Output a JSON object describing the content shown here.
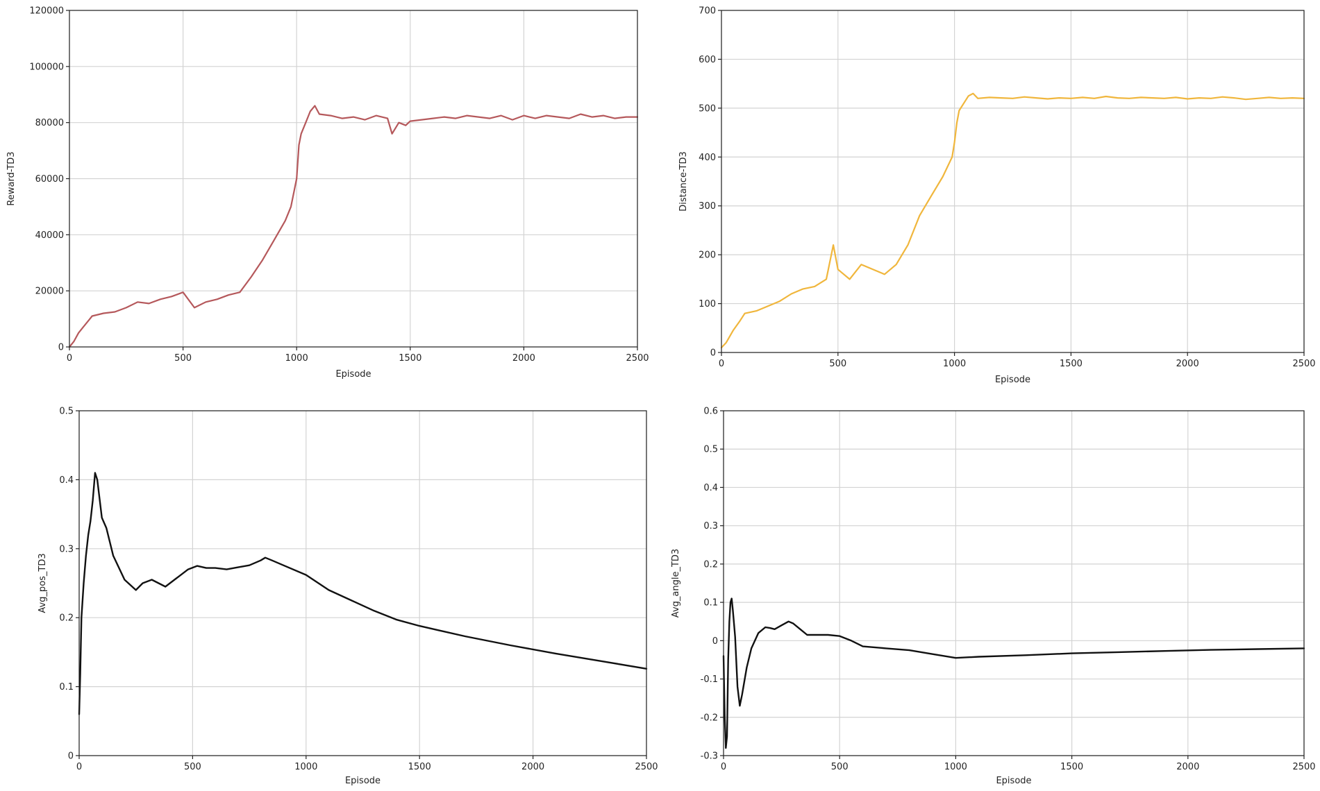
{
  "chart_data": [
    {
      "type": "line",
      "xlabel": "Episode",
      "ylabel": "Reward-TD3",
      "xlim": [
        0,
        2500
      ],
      "ylim": [
        0,
        120000
      ],
      "xticks": [
        0,
        500,
        1000,
        1500,
        2000,
        2500
      ],
      "yticks": [
        0,
        20000,
        40000,
        60000,
        80000,
        100000,
        120000
      ],
      "grid": true,
      "series": [
        {
          "color": "#b5585b",
          "x": [
            0,
            20,
            40,
            60,
            80,
            100,
            150,
            200,
            250,
            300,
            350,
            400,
            450,
            500,
            550,
            600,
            650,
            700,
            750,
            800,
            850,
            900,
            950,
            975,
            1000,
            1010,
            1020,
            1040,
            1060,
            1080,
            1100,
            1150,
            1200,
            1250,
            1300,
            1350,
            1400,
            1420,
            1450,
            1480,
            1500,
            1550,
            1600,
            1650,
            1700,
            1750,
            1800,
            1850,
            1900,
            1950,
            2000,
            2050,
            2100,
            2150,
            2200,
            2250,
            2300,
            2350,
            2400,
            2450,
            2500
          ],
          "values": [
            0,
            2000,
            5000,
            7000,
            9000,
            11000,
            12000,
            12500,
            14000,
            16000,
            15500,
            17000,
            18000,
            19500,
            14000,
            16000,
            17000,
            18500,
            19500,
            25000,
            31000,
            38000,
            45000,
            50000,
            60000,
            72000,
            76000,
            80000,
            84000,
            86000,
            83000,
            82500,
            81500,
            82000,
            81000,
            82500,
            81500,
            76000,
            80000,
            79000,
            80500,
            81000,
            81500,
            82000,
            81500,
            82500,
            82000,
            81500,
            82500,
            81000,
            82500,
            81500,
            82500,
            82000,
            81500,
            83000,
            82000,
            82500,
            81500,
            82000,
            82000
          ]
        }
      ]
    },
    {
      "type": "line",
      "xlabel": "Episode",
      "ylabel": "Distance-TD3",
      "xlim": [
        0,
        2500
      ],
      "ylim": [
        0,
        700
      ],
      "xticks": [
        0,
        500,
        1000,
        1500,
        2000,
        2500
      ],
      "yticks": [
        0,
        100,
        200,
        300,
        400,
        500,
        600,
        700
      ],
      "grid": true,
      "series": [
        {
          "color": "#f0b63c",
          "x": [
            0,
            20,
            50,
            80,
            100,
            150,
            200,
            250,
            300,
            350,
            400,
            450,
            480,
            500,
            550,
            600,
            650,
            700,
            750,
            800,
            850,
            900,
            950,
            990,
            1000,
            1010,
            1020,
            1040,
            1060,
            1080,
            1100,
            1150,
            1200,
            1250,
            1300,
            1350,
            1400,
            1450,
            1500,
            1550,
            1600,
            1650,
            1700,
            1750,
            1800,
            1850,
            1900,
            1950,
            2000,
            2050,
            2100,
            2150,
            2200,
            2250,
            2300,
            2350,
            2400,
            2450,
            2500
          ],
          "values": [
            10,
            20,
            45,
            65,
            80,
            85,
            95,
            105,
            120,
            130,
            135,
            150,
            220,
            170,
            150,
            180,
            170,
            160,
            180,
            220,
            280,
            320,
            360,
            400,
            430,
            470,
            495,
            510,
            525,
            530,
            520,
            522,
            521,
            520,
            523,
            521,
            519,
            521,
            520,
            522,
            520,
            524,
            521,
            520,
            522,
            521,
            520,
            522,
            519,
            521,
            520,
            523,
            521,
            518,
            520,
            522,
            520,
            521,
            520
          ]
        }
      ]
    },
    {
      "type": "line",
      "xlabel": "Episode",
      "ylabel": "Avg_pos_TD3",
      "xlim": [
        0,
        2500
      ],
      "ylim": [
        0.0,
        0.5
      ],
      "xticks": [
        0,
        500,
        1000,
        1500,
        2000,
        2500
      ],
      "yticks": [
        0.0,
        0.1,
        0.2,
        0.3,
        0.4,
        0.5
      ],
      "grid": true,
      "series": [
        {
          "color": "#111111",
          "x": [
            0,
            5,
            10,
            20,
            30,
            40,
            50,
            60,
            70,
            80,
            100,
            120,
            150,
            200,
            250,
            280,
            320,
            380,
            420,
            480,
            520,
            560,
            600,
            650,
            700,
            750,
            800,
            820,
            850,
            900,
            1000,
            1100,
            1200,
            1300,
            1400,
            1500,
            1700,
            1900,
            2100,
            2300,
            2500
          ],
          "values": [
            0.06,
            0.12,
            0.2,
            0.25,
            0.29,
            0.32,
            0.34,
            0.37,
            0.41,
            0.4,
            0.345,
            0.33,
            0.29,
            0.255,
            0.24,
            0.25,
            0.255,
            0.245,
            0.255,
            0.27,
            0.275,
            0.272,
            0.272,
            0.27,
            0.273,
            0.276,
            0.283,
            0.287,
            0.283,
            0.276,
            0.262,
            0.24,
            0.225,
            0.21,
            0.197,
            0.188,
            0.173,
            0.16,
            0.148,
            0.137,
            0.126
          ]
        }
      ]
    },
    {
      "type": "line",
      "xlabel": "Episode",
      "ylabel": "Avg_angle_TD3",
      "xlim": [
        0,
        2500
      ],
      "ylim": [
        -0.3,
        0.6
      ],
      "xticks": [
        0,
        500,
        1000,
        1500,
        2000,
        2500
      ],
      "yticks": [
        -0.3,
        -0.2,
        -0.1,
        0.0,
        0.1,
        0.2,
        0.3,
        0.4,
        0.5,
        0.6
      ],
      "grid": true,
      "series": [
        {
          "color": "#111111",
          "x": [
            0,
            5,
            10,
            15,
            20,
            25,
            30,
            35,
            40,
            50,
            60,
            70,
            80,
            100,
            120,
            150,
            180,
            200,
            220,
            250,
            280,
            300,
            330,
            360,
            400,
            450,
            500,
            550,
            600,
            700,
            800,
            900,
            1000,
            1100,
            1300,
            1500,
            1700,
            1900,
            2100,
            2300,
            2500
          ],
          "values": [
            -0.04,
            -0.2,
            -0.28,
            -0.25,
            -0.05,
            0.05,
            0.1,
            0.11,
            0.08,
            0.01,
            -0.12,
            -0.17,
            -0.14,
            -0.07,
            -0.02,
            0.02,
            0.035,
            0.033,
            0.03,
            0.04,
            0.05,
            0.045,
            0.03,
            0.015,
            0.015,
            0.015,
            0.012,
            0.0,
            -0.015,
            -0.02,
            -0.025,
            -0.035,
            -0.045,
            -0.042,
            -0.038,
            -0.033,
            -0.03,
            -0.027,
            -0.024,
            -0.022,
            -0.02
          ]
        }
      ]
    }
  ]
}
